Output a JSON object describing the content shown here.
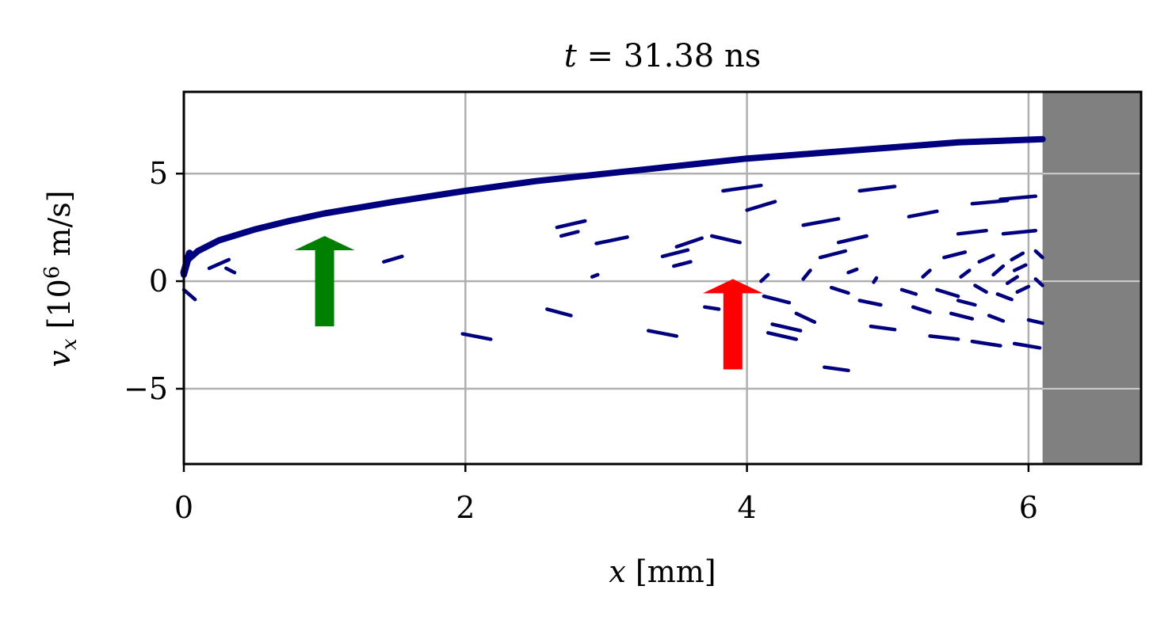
{
  "chart_data": {
    "type": "scatter",
    "title": {
      "var": "t",
      "eq": " = 31.38 ns"
    },
    "xlabel": {
      "var": "x",
      "rest": " [mm]"
    },
    "ylabel": {
      "var": "v",
      "sub": "x",
      "pre": " [10",
      "sup": "6",
      "post": " m/s]"
    },
    "xlim": [
      0,
      6.8
    ],
    "ylim": [
      -8.5,
      8.8
    ],
    "xticks": [
      {
        "v": 0,
        "label": "0"
      },
      {
        "v": 2,
        "label": "2"
      },
      {
        "v": 4,
        "label": "4"
      },
      {
        "v": 6,
        "label": "6"
      }
    ],
    "yticks": [
      {
        "v": 5,
        "label": "5"
      },
      {
        "v": 0,
        "label": "0"
      },
      {
        "v": -5,
        "label": "−5"
      }
    ],
    "grid": true,
    "shaded_region": {
      "x": [
        6.1,
        6.8
      ],
      "color": "#808080"
    },
    "series_color": "#00007f",
    "main_curve": [
      [
        0.0,
        0.3
      ],
      [
        0.03,
        1.0
      ],
      [
        0.1,
        1.4
      ],
      [
        0.25,
        1.9
      ],
      [
        0.5,
        2.4
      ],
      [
        0.75,
        2.8
      ],
      [
        1.0,
        3.15
      ],
      [
        1.5,
        3.7
      ],
      [
        2.0,
        4.2
      ],
      [
        2.5,
        4.65
      ],
      [
        3.0,
        5.0
      ],
      [
        3.5,
        5.35
      ],
      [
        4.0,
        5.7
      ],
      [
        4.5,
        5.95
      ],
      [
        5.0,
        6.2
      ],
      [
        5.5,
        6.45
      ],
      [
        6.1,
        6.6
      ]
    ],
    "segments": [
      [
        [
          0.0,
          -0.4
        ],
        [
          0.08,
          -0.85
        ]
      ],
      [
        [
          0.18,
          0.6
        ],
        [
          0.32,
          1.0
        ]
      ],
      [
        [
          0.3,
          0.6
        ],
        [
          0.36,
          0.4
        ]
      ],
      [
        [
          1.42,
          0.9
        ],
        [
          1.55,
          1.15
        ]
      ],
      [
        [
          1.98,
          -2.45
        ],
        [
          2.18,
          -2.7
        ]
      ],
      [
        [
          2.58,
          -1.3
        ],
        [
          2.75,
          -1.6
        ]
      ],
      [
        [
          2.65,
          2.5
        ],
        [
          2.85,
          2.8
        ]
      ],
      [
        [
          2.68,
          2.1
        ],
        [
          2.8,
          2.3
        ]
      ],
      [
        [
          2.9,
          0.2
        ],
        [
          2.94,
          0.3
        ]
      ],
      [
        [
          2.93,
          1.75
        ],
        [
          3.15,
          2.05
        ]
      ],
      [
        [
          3.3,
          -2.3
        ],
        [
          3.5,
          -2.55
        ]
      ],
      [
        [
          3.4,
          1.15
        ],
        [
          3.58,
          1.45
        ]
      ],
      [
        [
          3.48,
          0.7
        ],
        [
          3.6,
          0.9
        ]
      ],
      [
        [
          3.5,
          1.6
        ],
        [
          3.68,
          2.0
        ]
      ],
      [
        [
          3.75,
          2.1
        ],
        [
          3.95,
          1.8
        ]
      ],
      [
        [
          3.7,
          -1.2
        ],
        [
          3.8,
          -1.3
        ]
      ],
      [
        [
          3.83,
          4.2
        ],
        [
          4.1,
          4.45
        ]
      ],
      [
        [
          4.0,
          3.3
        ],
        [
          4.2,
          3.7
        ]
      ],
      [
        [
          4.1,
          0.0
        ],
        [
          4.15,
          0.3
        ]
      ],
      [
        [
          4.12,
          -0.7
        ],
        [
          4.3,
          -1.0
        ]
      ],
      [
        [
          4.15,
          -2.4
        ],
        [
          4.35,
          -2.7
        ]
      ],
      [
        [
          4.18,
          -2.0
        ],
        [
          4.38,
          -2.3
        ]
      ],
      [
        [
          4.35,
          -1.5
        ],
        [
          4.48,
          -1.9
        ]
      ],
      [
        [
          4.4,
          2.6
        ],
        [
          4.65,
          2.9
        ]
      ],
      [
        [
          4.4,
          0.1
        ],
        [
          4.45,
          0.5
        ]
      ],
      [
        [
          4.52,
          1.1
        ],
        [
          4.7,
          1.4
        ]
      ],
      [
        [
          4.55,
          -4.0
        ],
        [
          4.72,
          -4.15
        ]
      ],
      [
        [
          4.6,
          -0.3
        ],
        [
          4.72,
          -0.55
        ]
      ],
      [
        [
          4.65,
          1.8
        ],
        [
          4.85,
          2.1
        ]
      ],
      [
        [
          4.72,
          0.4
        ],
        [
          4.78,
          0.55
        ]
      ],
      [
        [
          4.8,
          4.2
        ],
        [
          5.05,
          4.4
        ]
      ],
      [
        [
          4.8,
          -0.9
        ],
        [
          4.95,
          -1.1
        ]
      ],
      [
        [
          4.88,
          -2.1
        ],
        [
          5.05,
          -2.25
        ]
      ],
      [
        [
          4.9,
          -0.05
        ],
        [
          4.92,
          0.15
        ]
      ],
      [
        [
          5.1,
          -0.4
        ],
        [
          5.2,
          -0.6
        ]
      ],
      [
        [
          5.15,
          3.0
        ],
        [
          5.35,
          3.25
        ]
      ],
      [
        [
          5.18,
          -1.2
        ],
        [
          5.3,
          -1.45
        ]
      ],
      [
        [
          5.25,
          0.2
        ],
        [
          5.3,
          0.5
        ]
      ],
      [
        [
          5.3,
          -2.55
        ],
        [
          5.5,
          -2.7
        ]
      ],
      [
        [
          5.35,
          -0.4
        ],
        [
          5.5,
          -0.7
        ]
      ],
      [
        [
          5.4,
          1.1
        ],
        [
          5.55,
          1.35
        ]
      ],
      [
        [
          5.45,
          -1.5
        ],
        [
          5.6,
          -1.75
        ]
      ],
      [
        [
          5.5,
          2.2
        ],
        [
          5.7,
          2.35
        ]
      ],
      [
        [
          5.5,
          -0.9
        ],
        [
          5.62,
          -1.1
        ]
      ],
      [
        [
          5.52,
          0.2
        ],
        [
          5.58,
          0.5
        ]
      ],
      [
        [
          5.6,
          -2.8
        ],
        [
          5.8,
          -3.0
        ]
      ],
      [
        [
          5.6,
          3.6
        ],
        [
          5.85,
          3.75
        ]
      ],
      [
        [
          5.62,
          -0.2
        ],
        [
          5.7,
          -0.5
        ]
      ],
      [
        [
          5.65,
          0.9
        ],
        [
          5.75,
          1.2
        ]
      ],
      [
        [
          5.72,
          -1.6
        ],
        [
          5.82,
          -1.85
        ]
      ],
      [
        [
          5.75,
          0.3
        ],
        [
          5.82,
          0.7
        ]
      ],
      [
        [
          5.78,
          -0.6
        ],
        [
          5.88,
          -0.85
        ]
      ],
      [
        [
          5.8,
          3.8
        ],
        [
          6.05,
          3.95
        ]
      ],
      [
        [
          5.82,
          2.2
        ],
        [
          6.05,
          2.35
        ]
      ],
      [
        [
          5.85,
          -0.1
        ],
        [
          5.92,
          0.2
        ]
      ],
      [
        [
          5.88,
          1.0
        ],
        [
          5.96,
          1.3
        ]
      ],
      [
        [
          5.9,
          -2.9
        ],
        [
          6.08,
          -3.1
        ]
      ],
      [
        [
          5.9,
          0.5
        ],
        [
          5.98,
          0.75
        ]
      ],
      [
        [
          5.92,
          -0.5
        ],
        [
          6.0,
          -0.25
        ]
      ],
      [
        [
          6.0,
          -1.8
        ],
        [
          6.1,
          -1.95
        ]
      ],
      [
        [
          6.05,
          1.4
        ],
        [
          6.1,
          1.1
        ]
      ],
      [
        [
          6.05,
          0.1
        ],
        [
          6.1,
          -0.2
        ]
      ]
    ],
    "annotations": [
      {
        "type": "arrow",
        "color": "#008000",
        "x": 1.0,
        "y_base": -2.1,
        "y_tip": 2.1
      },
      {
        "type": "arrow",
        "color": "#ff0000",
        "x": 3.9,
        "y_base": -4.1,
        "y_tip": 0.1
      }
    ]
  }
}
